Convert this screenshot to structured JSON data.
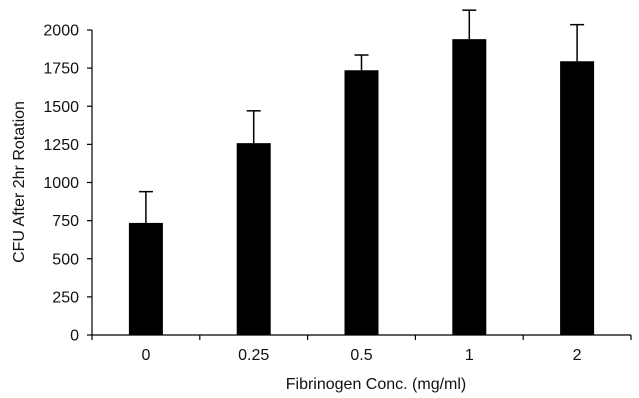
{
  "chart_data": {
    "type": "bar",
    "title": "",
    "xlabel": "Fibrinogen Conc. (mg/ml)",
    "ylabel": "CFU After 2hr Rotation",
    "categories": [
      "0",
      "0.25",
      "0.5",
      "1",
      "2"
    ],
    "values": [
      735,
      1258,
      1736,
      1940,
      1795
    ],
    "error_upper": [
      205,
      212,
      100,
      190,
      240
    ],
    "ylim": [
      0,
      2000
    ],
    "yticks": [
      0,
      250,
      500,
      750,
      1000,
      1250,
      1500,
      1750,
      2000
    ],
    "ytick_labels": [
      "0",
      "250",
      "500",
      "750",
      "1000",
      "1250",
      "1500",
      "1750",
      "2000"
    ],
    "grid": false,
    "legend": "none",
    "bar_color": "#000000"
  }
}
